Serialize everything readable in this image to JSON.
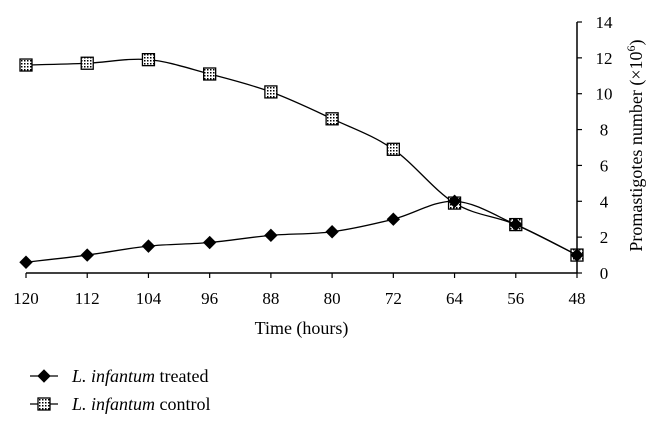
{
  "chart_data": {
    "type": "line",
    "x": [
      120,
      112,
      104,
      96,
      88,
      80,
      72,
      64,
      56,
      48
    ],
    "xlabel": "Time (hours)",
    "ylabel": "Promastigotes number (×10",
    "ylabel_sup": "6",
    "ylabel_close": ")",
    "xlim": [
      120,
      48
    ],
    "x_reversed": true,
    "ylim": [
      0,
      14
    ],
    "y_ticks": [
      0,
      2,
      4,
      6,
      8,
      10,
      12,
      14
    ],
    "y_axis_position": "right",
    "grid": false,
    "legend_position": "bottom-left",
    "series": [
      {
        "name_italic": "L. infantum",
        "name_rest": " treated",
        "marker": "diamond",
        "color": "#000000",
        "values": [
          0.6,
          1.0,
          1.5,
          1.7,
          2.1,
          2.3,
          3.0,
          4.0,
          2.7,
          1.0
        ]
      },
      {
        "name_italic": "L. infantum",
        "name_rest": " control",
        "marker": "dotted-square",
        "color": "#000000",
        "values": [
          11.6,
          11.7,
          11.9,
          11.1,
          10.1,
          8.6,
          6.9,
          3.9,
          2.7,
          1.0
        ]
      }
    ]
  }
}
